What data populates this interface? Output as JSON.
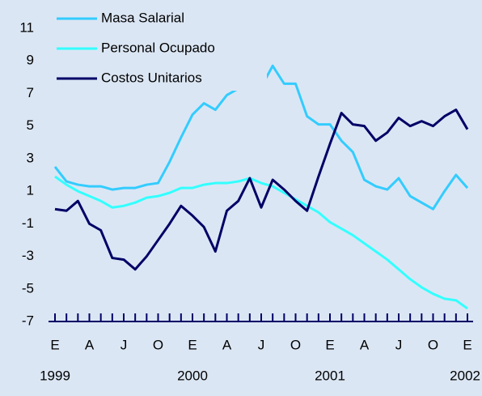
{
  "chart_data": {
    "type": "line",
    "categories": [
      "E",
      null,
      null,
      "A",
      null,
      null,
      "J",
      null,
      null,
      "O",
      null,
      null,
      "E",
      null,
      null,
      "A",
      null,
      null,
      "J",
      null,
      null,
      "O",
      null,
      null,
      "E",
      null,
      null,
      "A",
      null,
      null,
      "J",
      null,
      null,
      "O",
      null,
      null,
      "E"
    ],
    "years": [
      "1999",
      "2000",
      "2001",
      "2002"
    ],
    "series": [
      {
        "name": "Masa Salarial",
        "color": "#33ccff",
        "values": [
          2.5,
          1.6,
          1.4,
          1.3,
          1.3,
          1.1,
          1.2,
          1.2,
          1.4,
          1.5,
          2.8,
          4.3,
          5.7,
          6.4,
          6.0,
          6.9,
          7.3,
          8.3,
          7.4,
          8.7,
          7.6,
          7.6,
          5.6,
          5.1,
          5.1,
          4.1,
          3.4,
          1.7,
          1.3,
          1.1,
          1.8,
          0.7,
          0.3,
          -0.1,
          1.0,
          2.0,
          1.2
        ]
      },
      {
        "name": "Personal Ocupado",
        "color": "#33ffff",
        "values": [
          1.9,
          1.4,
          1.0,
          0.7,
          0.4,
          0.0,
          0.1,
          0.3,
          0.6,
          0.7,
          0.9,
          1.2,
          1.2,
          1.4,
          1.5,
          1.5,
          1.6,
          1.8,
          1.5,
          1.3,
          0.9,
          0.5,
          0.1,
          -0.3,
          -0.9,
          -1.3,
          -1.7,
          -2.2,
          -2.7,
          -3.2,
          -3.8,
          -4.4,
          -4.9,
          -5.3,
          -5.6,
          -5.7,
          -6.2
        ]
      },
      {
        "name": "Costos Unitarios",
        "color": "#000066",
        "values": [
          -0.1,
          -0.2,
          0.4,
          -1.0,
          -1.4,
          -3.1,
          -3.2,
          -3.8,
          -3.0,
          -2.0,
          -1.0,
          0.1,
          -0.5,
          -1.2,
          -2.7,
          -0.2,
          0.4,
          1.8,
          0.0,
          1.7,
          1.1,
          0.4,
          -0.2,
          1.9,
          3.9,
          5.8,
          5.1,
          5.0,
          4.1,
          4.6,
          5.5,
          5.0,
          5.3,
          5.0,
          5.6,
          6.0,
          4.8
        ]
      }
    ],
    "ylim": [
      -7,
      11
    ],
    "yticks": [
      11,
      9,
      7,
      5,
      3,
      1,
      -1,
      -3,
      -5,
      -7
    ],
    "grid": false
  }
}
